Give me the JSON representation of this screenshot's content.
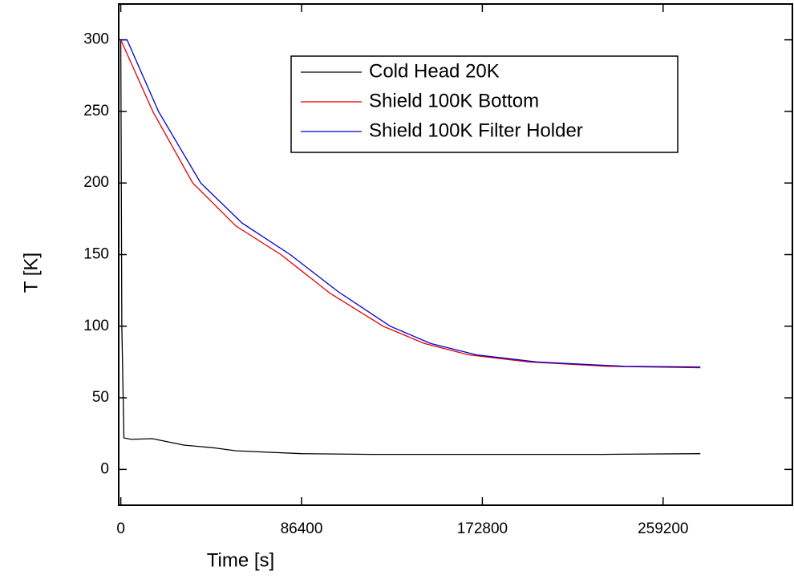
{
  "chart_data": {
    "type": "line",
    "x_label": "Time [s]",
    "y_label": "T [K]",
    "xlim": [
      -1000,
      321000
    ],
    "ylim": [
      -25,
      325
    ],
    "xticks": [
      0,
      86400,
      172800,
      259200
    ],
    "yticks": [
      0,
      50,
      100,
      150,
      200,
      250,
      300
    ],
    "legend": "top-center",
    "series": [
      {
        "name": "Cold Head 20K",
        "color": "#000000",
        "x": [
          0,
          500,
          1500,
          5000,
          15000,
          20000,
          30000,
          45000,
          55000,
          70000,
          86400,
          120000,
          172800,
          230000,
          277000
        ],
        "values": [
          300,
          100,
          22,
          21,
          21.5,
          20,
          17,
          15,
          13,
          12,
          11,
          10.5,
          10.5,
          10.5,
          11
        ]
      },
      {
        "name": "Shield 100K Bottom",
        "color": "#e00000",
        "x": [
          0,
          15300,
          34400,
          55000,
          76500,
          100000,
          125400,
          145000,
          166300,
          195000,
          233000,
          277000
        ],
        "values": [
          300,
          250,
          200,
          170,
          150,
          123,
          100,
          88,
          80,
          75,
          72,
          71
        ]
      },
      {
        "name": "Shield 100K Filter Holder",
        "color": "#0000cc",
        "x": [
          0,
          3000,
          18000,
          38200,
          58000,
          81000,
          104000,
          128800,
          148000,
          170000,
          199000,
          241000,
          277000
        ],
        "values": [
          300,
          300,
          250,
          200,
          172,
          150,
          124,
          100,
          88,
          80,
          75,
          72,
          71.5
        ]
      }
    ]
  }
}
